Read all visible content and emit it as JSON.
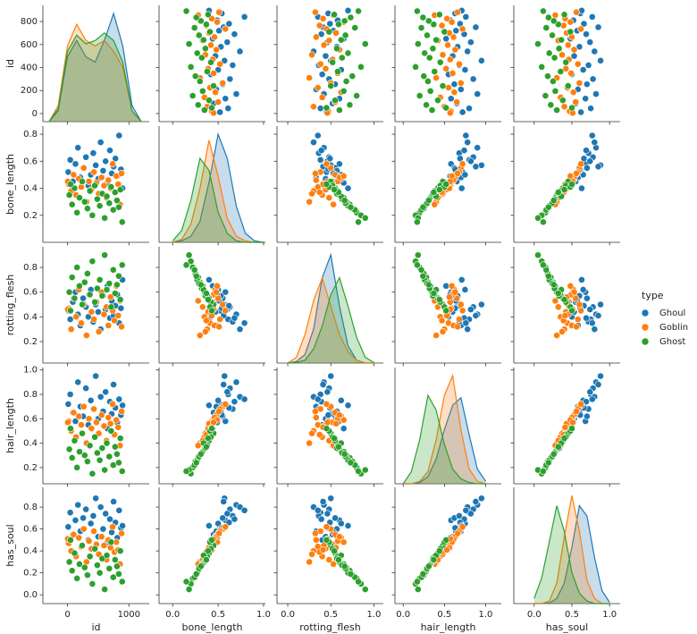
{
  "chart_data": {
    "type": "pairplot",
    "legend_title": "type",
    "legend_position": "right",
    "variables": [
      {
        "name": "id",
        "xlim": [
          -400,
          1330
        ],
        "ylim": [
          -70,
          940
        ],
        "xticks": [
          0,
          1000
        ],
        "yticks": [
          0,
          200,
          400,
          600,
          800
        ],
        "kde_x": [
          -300,
          -150,
          0,
          150,
          300,
          450,
          600,
          750,
          900,
          1050,
          1200
        ]
      },
      {
        "name": "bone_length",
        "xlim": [
          -0.15,
          1.02
        ],
        "ylim": [
          0,
          0.86
        ],
        "xticks": [
          {
            "value": 0,
            "label": "0.0"
          },
          0.5,
          {
            "value": 1,
            "label": "1.0"
          }
        ],
        "yticks": [
          0.2,
          0.4,
          0.6,
          0.8
        ],
        "kde_x": [
          0,
          0.1,
          0.2,
          0.3,
          0.4,
          0.5,
          0.6,
          0.7,
          0.8,
          0.9,
          1.0
        ]
      },
      {
        "name": "rotting_flesh",
        "xlim": [
          -0.125,
          1.11
        ],
        "ylim": [
          0.026,
          0.967
        ],
        "xticks": [
          {
            "value": 0,
            "label": "0.0"
          },
          0.5,
          {
            "value": 1,
            "label": "1.0"
          }
        ],
        "yticks": [
          0.2,
          0.4,
          0.6,
          0.8
        ],
        "kde_x": [
          0,
          0.1,
          0.2,
          0.3,
          0.4,
          0.5,
          0.6,
          0.7,
          0.8,
          0.9,
          1.0
        ]
      },
      {
        "name": "hair_length",
        "xlim": [
          -0.1,
          1.19
        ],
        "ylim": [
          0.067,
          1.02
        ],
        "xticks": [
          {
            "value": 0,
            "label": "0.0"
          },
          0.5,
          {
            "value": 1,
            "label": "1.0"
          }
        ],
        "yticks": [
          0.2,
          0.4,
          0.6,
          0.8,
          {
            "value": 1,
            "label": "1.0"
          }
        ],
        "kde_x": [
          0,
          0.1,
          0.2,
          0.3,
          0.4,
          0.5,
          0.6,
          0.7,
          0.8,
          0.9,
          1.0
        ]
      },
      {
        "name": "has_soul",
        "xlim": [
          -0.27,
          1.14
        ],
        "ylim": [
          -0.08,
          0.98
        ],
        "xticks": [
          {
            "value": 0,
            "label": "0.0"
          },
          0.5,
          {
            "value": 1,
            "label": "1.0"
          }
        ],
        "yticks": [
          {
            "value": 0,
            "label": "0.0"
          },
          0.2,
          0.4,
          0.6,
          0.8
        ],
        "kde_x": [
          0,
          0.1,
          0.2,
          0.3,
          0.4,
          0.5,
          0.6,
          0.7,
          0.8,
          0.9,
          1.0
        ]
      }
    ],
    "series": [
      {
        "name": "Ghoul",
        "color": "#1f77b4",
        "data": {
          "id": [
            12,
            45,
            88,
            130,
            170,
            210,
            255,
            300,
            340,
            380,
            420,
            460,
            500,
            540,
            580,
            620,
            650,
            690,
            720,
            750,
            780,
            810,
            840,
            870,
            895
          ],
          "bone_length": [
            0.52,
            0.61,
            0.45,
            0.58,
            0.7,
            0.48,
            0.55,
            0.63,
            0.42,
            0.5,
            0.66,
            0.57,
            0.47,
            0.74,
            0.53,
            0.6,
            0.44,
            0.68,
            0.51,
            0.56,
            0.62,
            0.49,
            0.79,
            0.54,
            0.4
          ],
          "rotting_flesh": [
            0.45,
            0.38,
            0.52,
            0.6,
            0.42,
            0.33,
            0.55,
            0.48,
            0.4,
            0.62,
            0.36,
            0.5,
            0.44,
            0.3,
            0.57,
            0.46,
            0.65,
            0.39,
            0.53,
            0.41,
            0.49,
            0.58,
            0.35,
            0.47,
            0.7
          ],
          "hair_length": [
            0.72,
            0.8,
            0.65,
            0.58,
            0.9,
            0.7,
            0.62,
            0.85,
            0.55,
            0.75,
            0.68,
            0.95,
            0.6,
            0.78,
            0.66,
            0.82,
            0.52,
            0.74,
            0.64,
            0.88,
            0.69,
            0.57,
            0.76,
            0.63,
            0.71
          ],
          "has_soul": [
            0.62,
            0.75,
            0.55,
            0.68,
            0.82,
            0.58,
            0.7,
            0.78,
            0.5,
            0.65,
            0.72,
            0.88,
            0.53,
            0.8,
            0.6,
            0.74,
            0.48,
            0.69,
            0.57,
            0.85,
            0.66,
            0.52,
            0.77,
            0.61,
            0.63
          ]
        },
        "kde": {
          "id": [
            0,
            0.1,
            0.6,
            0.75,
            0.6,
            0.55,
            0.75,
            1.0,
            0.7,
            0.15,
            0
          ],
          "bone_length": [
            0,
            0.05,
            0.2,
            0.7,
            2.0,
            3.6,
            2.8,
            1.2,
            0.3,
            0.05,
            0
          ],
          "rotting_flesh": [
            0,
            0.05,
            0.3,
            1.2,
            3.0,
            3.8,
            2.0,
            0.6,
            0.1,
            0,
            0
          ],
          "hair_length": [
            0,
            0,
            0.05,
            0.3,
            1.0,
            2.2,
            3.2,
            3.5,
            2.0,
            0.6,
            0.1
          ],
          "has_soul": [
            0,
            0,
            0.02,
            0.2,
            0.8,
            2.2,
            3.8,
            3.4,
            1.8,
            0.5,
            0.05
          ]
        }
      },
      {
        "name": "Goblin",
        "color": "#ff7f0e",
        "data": {
          "id": [
            20,
            60,
            100,
            140,
            185,
            225,
            265,
            310,
            350,
            390,
            430,
            470,
            510,
            555,
            595,
            635,
            665,
            700,
            735,
            765,
            795,
            825,
            855,
            880,
            5
          ],
          "bone_length": [
            0.43,
            0.38,
            0.5,
            0.35,
            0.47,
            0.41,
            0.55,
            0.3,
            0.45,
            0.39,
            0.52,
            0.44,
            0.36,
            0.48,
            0.42,
            0.33,
            0.46,
            0.4,
            0.58,
            0.37,
            0.49,
            0.43,
            0.28,
            0.51,
            0.45
          ],
          "rotting_flesh": [
            0.47,
            0.3,
            0.55,
            0.4,
            0.62,
            0.35,
            0.5,
            0.25,
            0.58,
            0.44,
            0.38,
            0.52,
            0.28,
            0.6,
            0.42,
            0.48,
            0.33,
            0.56,
            0.45,
            0.37,
            0.65,
            0.41,
            0.53,
            0.32,
            0.46
          ],
          "hair_length": [
            0.58,
            0.5,
            0.65,
            0.45,
            0.62,
            0.55,
            0.7,
            0.4,
            0.6,
            0.52,
            0.68,
            0.57,
            0.48,
            0.63,
            0.54,
            0.42,
            0.61,
            0.56,
            0.72,
            0.47,
            0.59,
            0.53,
            0.38,
            0.66,
            0.57
          ],
          "has_soul": [
            0.47,
            0.4,
            0.55,
            0.35,
            0.52,
            0.44,
            0.6,
            0.3,
            0.49,
            0.42,
            0.58,
            0.46,
            0.37,
            0.53,
            0.45,
            0.32,
            0.5,
            0.43,
            0.62,
            0.39,
            0.48,
            0.41,
            0.28,
            0.56,
            0.51
          ]
        },
        "kde": {
          "id": [
            0,
            0.15,
            0.7,
            0.9,
            0.75,
            0.7,
            0.75,
            0.65,
            0.5,
            0.1,
            0
          ],
          "bone_length": [
            0,
            0.1,
            0.6,
            1.8,
            3.4,
            2.2,
            0.8,
            0.2,
            0.05,
            0,
            0
          ],
          "rotting_flesh": [
            0,
            0.2,
            1.0,
            2.2,
            3.0,
            2.0,
            1.0,
            0.4,
            0.1,
            0,
            0
          ],
          "hair_length": [
            0,
            0,
            0.1,
            0.5,
            1.8,
            3.6,
            4.4,
            2.2,
            0.6,
            0.1,
            0
          ],
          "has_soul": [
            0,
            0,
            0.1,
            0.8,
            2.6,
            4.2,
            2.8,
            0.9,
            0.2,
            0,
            0
          ]
        }
      },
      {
        "name": "Ghost",
        "color": "#2ca02c",
        "data": {
          "id": [
            30,
            75,
            115,
            155,
            195,
            240,
            280,
            325,
            365,
            405,
            445,
            485,
            525,
            565,
            605,
            640,
            680,
            710,
            745,
            775,
            805,
            835,
            860,
            890,
            50
          ],
          "bone_length": [
            0.35,
            0.28,
            0.4,
            0.22,
            0.33,
            0.45,
            0.3,
            0.25,
            0.38,
            0.2,
            0.42,
            0.32,
            0.27,
            0.36,
            0.18,
            0.34,
            0.29,
            0.41,
            0.24,
            0.37,
            0.31,
            0.26,
            0.39,
            0.15,
            0.43
          ],
          "rotting_flesh": [
            0.6,
            0.72,
            0.55,
            0.8,
            0.65,
            0.5,
            0.68,
            0.75,
            0.58,
            0.85,
            0.52,
            0.63,
            0.7,
            0.57,
            0.9,
            0.62,
            0.67,
            0.48,
            0.78,
            0.59,
            0.66,
            0.73,
            0.54,
            0.82,
            0.45
          ],
          "hair_length": [
            0.35,
            0.28,
            0.42,
            0.2,
            0.33,
            0.48,
            0.3,
            0.25,
            0.38,
            0.15,
            0.45,
            0.32,
            0.26,
            0.36,
            0.18,
            0.4,
            0.29,
            0.5,
            0.22,
            0.37,
            0.31,
            0.24,
            0.44,
            0.17,
            0.52
          ],
          "has_soul": [
            0.3,
            0.22,
            0.38,
            0.15,
            0.28,
            0.45,
            0.25,
            0.18,
            0.35,
            0.1,
            0.42,
            0.27,
            0.2,
            0.33,
            0.05,
            0.36,
            0.24,
            0.48,
            0.16,
            0.32,
            0.26,
            0.19,
            0.4,
            0.12,
            0.5
          ]
        },
        "kde": {
          "id": [
            0,
            0.12,
            0.65,
            0.8,
            0.72,
            0.75,
            0.82,
            0.75,
            0.55,
            0.1,
            0
          ],
          "bone_length": [
            0.05,
            0.4,
            1.4,
            2.8,
            2.4,
            1.0,
            0.3,
            0.05,
            0,
            0,
            0
          ],
          "rotting_flesh": [
            0,
            0.02,
            0.1,
            0.5,
            1.3,
            2.4,
            3.0,
            2.0,
            0.9,
            0.2,
            0.02
          ],
          "hair_length": [
            0,
            0.5,
            1.8,
            3.6,
            3.0,
            1.6,
            0.6,
            0.2,
            0.05,
            0,
            0
          ],
          "has_soul": [
            0.2,
            1.0,
            2.4,
            3.8,
            2.8,
            1.2,
            0.4,
            0.1,
            0,
            0,
            0
          ]
        }
      }
    ]
  }
}
